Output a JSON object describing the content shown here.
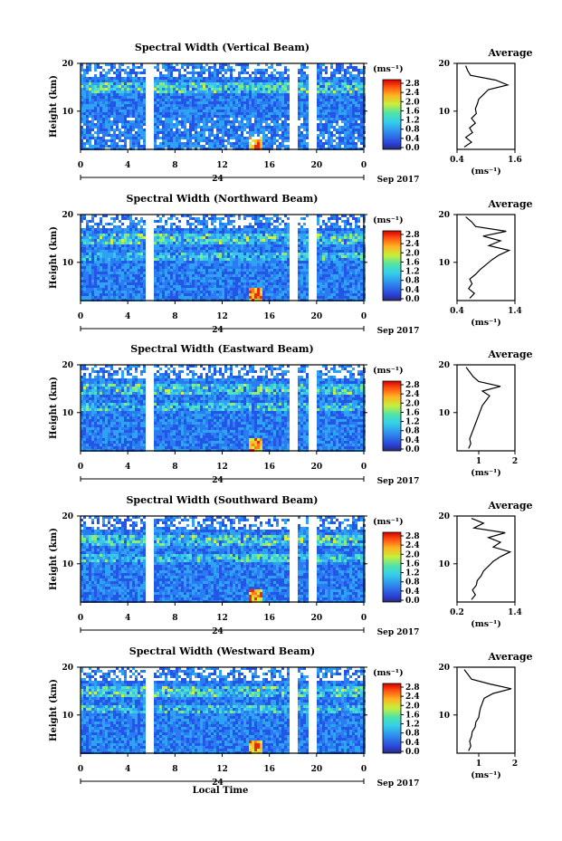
{
  "chart_data": [
    {
      "type": "heatmap",
      "title": "Spectral Width (Vertical Beam)",
      "ylabel": "Height (km)",
      "ylim": [
        2,
        20
      ],
      "yticks": [
        "20",
        "10"
      ],
      "xticks": [
        "0",
        "4",
        "8",
        "12",
        "16",
        "20",
        "0"
      ],
      "date_marker": "24",
      "date_label": "Sep 2017",
      "colorbar": {
        "unit": "(ms⁻¹)",
        "ticks": [
          "2.8",
          "2.4",
          "2.0",
          "1.6",
          "1.2",
          "0.8",
          "0.4",
          "0.0"
        ]
      },
      "average": {
        "title": "Average",
        "xlabel": "(ms⁻¹)",
        "xticks": [
          "0.4",
          "1.6"
        ],
        "xlim": [
          0.4,
          1.6
        ],
        "profile": [
          [
            0.55,
            2.5
          ],
          [
            0.7,
            3.5
          ],
          [
            0.58,
            4.5
          ],
          [
            0.72,
            5.5
          ],
          [
            0.66,
            6.5
          ],
          [
            0.78,
            7.5
          ],
          [
            0.7,
            8.5
          ],
          [
            0.8,
            9.5
          ],
          [
            0.78,
            10.5
          ],
          [
            0.82,
            11.5
          ],
          [
            0.85,
            12.5
          ],
          [
            0.95,
            13.5
          ],
          [
            1.05,
            14.5
          ],
          [
            1.45,
            15.5
          ],
          [
            1.2,
            16.5
          ],
          [
            0.68,
            17.5
          ],
          [
            0.62,
            18.5
          ],
          [
            0.58,
            19.5
          ]
        ]
      }
    },
    {
      "type": "heatmap",
      "title": "Spectral Width (Northward Beam)",
      "ylabel": "Height (km)",
      "ylim": [
        2,
        20
      ],
      "yticks": [
        "20",
        "10"
      ],
      "xticks": [
        "0",
        "4",
        "8",
        "12",
        "16",
        "20",
        "0"
      ],
      "date_marker": "24",
      "date_label": "Sep 2017",
      "colorbar": {
        "unit": "(ms⁻¹)",
        "ticks": [
          "2.8",
          "2.4",
          "2.0",
          "1.6",
          "1.2",
          "0.8",
          "0.4",
          "0.0"
        ]
      },
      "average": {
        "title": "Average",
        "xlabel": "(ms⁻¹)",
        "xticks": [
          "0.4",
          "1.4"
        ],
        "xlim": [
          0.4,
          1.4
        ],
        "profile": [
          [
            0.62,
            2.5
          ],
          [
            0.7,
            3.5
          ],
          [
            0.6,
            4.5
          ],
          [
            0.66,
            5.5
          ],
          [
            0.62,
            6.5
          ],
          [
            0.72,
            7.5
          ],
          [
            0.8,
            8.5
          ],
          [
            0.9,
            9.5
          ],
          [
            1.0,
            10.5
          ],
          [
            1.12,
            11.5
          ],
          [
            1.3,
            12.5
          ],
          [
            0.95,
            13.5
          ],
          [
            1.15,
            14.5
          ],
          [
            0.85,
            15.5
          ],
          [
            1.25,
            16.5
          ],
          [
            0.72,
            17.5
          ],
          [
            0.65,
            18.5
          ],
          [
            0.55,
            19.5
          ]
        ]
      }
    },
    {
      "type": "heatmap",
      "title": "Spectral Width (Eastward Beam)",
      "ylabel": "Height (km)",
      "ylim": [
        2,
        20
      ],
      "yticks": [
        "20",
        "10"
      ],
      "xticks": [
        "0",
        "4",
        "8",
        "12",
        "16",
        "20",
        "0"
      ],
      "date_marker": "24",
      "date_label": "Sep 2017",
      "colorbar": {
        "unit": "(ms⁻¹)",
        "ticks": [
          "2.8",
          "2.4",
          "2.0",
          "1.6",
          "1.2",
          "0.8",
          "0.4",
          "0.0"
        ]
      },
      "average": {
        "title": "Average",
        "xlabel": "(ms⁻¹)",
        "xticks": [
          "1",
          "2"
        ],
        "xlim": [
          0.4,
          2.0
        ],
        "profile": [
          [
            0.72,
            2.5
          ],
          [
            0.78,
            3.5
          ],
          [
            0.75,
            4.5
          ],
          [
            0.8,
            5.5
          ],
          [
            0.85,
            6.5
          ],
          [
            0.9,
            7.5
          ],
          [
            0.95,
            8.5
          ],
          [
            1.0,
            9.5
          ],
          [
            1.05,
            10.5
          ],
          [
            1.1,
            11.5
          ],
          [
            1.2,
            12.5
          ],
          [
            1.3,
            13.5
          ],
          [
            1.1,
            14.5
          ],
          [
            1.6,
            15.5
          ],
          [
            1.0,
            16.5
          ],
          [
            0.85,
            17.5
          ],
          [
            0.75,
            18.5
          ],
          [
            0.65,
            19.5
          ]
        ]
      }
    },
    {
      "type": "heatmap",
      "title": "Spectral Width (Southward Beam)",
      "ylabel": "Height (km)",
      "ylim": [
        2,
        20
      ],
      "yticks": [
        "20",
        "10"
      ],
      "xticks": [
        "0",
        "4",
        "8",
        "12",
        "16",
        "20",
        "0"
      ],
      "date_marker": "24",
      "date_label": "Sep 2017",
      "colorbar": {
        "unit": "(ms⁻¹)",
        "ticks": [
          "2.8",
          "2.4",
          "2.0",
          "1.6",
          "1.2",
          "0.8",
          "0.4",
          "0.0"
        ]
      },
      "average": {
        "title": "Average",
        "xlabel": "(ms⁻¹)",
        "xticks": [
          "0.2",
          "1.4"
        ],
        "xlim": [
          0.2,
          1.4
        ],
        "profile": [
          [
            0.5,
            2.5
          ],
          [
            0.58,
            3.5
          ],
          [
            0.52,
            4.5
          ],
          [
            0.6,
            5.5
          ],
          [
            0.62,
            6.5
          ],
          [
            0.7,
            7.5
          ],
          [
            0.75,
            8.5
          ],
          [
            0.85,
            9.5
          ],
          [
            0.95,
            10.5
          ],
          [
            1.1,
            11.5
          ],
          [
            1.3,
            12.5
          ],
          [
            0.95,
            13.5
          ],
          [
            1.1,
            14.5
          ],
          [
            0.85,
            15.5
          ],
          [
            1.2,
            16.5
          ],
          [
            0.55,
            17.5
          ],
          [
            0.75,
            18.5
          ],
          [
            0.5,
            19.5
          ]
        ]
      }
    },
    {
      "type": "heatmap",
      "title": "Spectral Width (Westward Beam)",
      "ylabel": "Height (km)",
      "ylim": [
        2,
        20
      ],
      "yticks": [
        "20",
        "10"
      ],
      "xticks": [
        "0",
        "4",
        "8",
        "12",
        "16",
        "20",
        "0"
      ],
      "date_marker": "24",
      "date_label": "Sep 2017",
      "xlabel": "Local Time",
      "colorbar": {
        "unit": "(ms⁻¹)",
        "ticks": [
          "2.8",
          "2.4",
          "2.0",
          "1.6",
          "1.2",
          "0.8",
          "0.4",
          "0.0"
        ]
      },
      "average": {
        "title": "Average",
        "xlabel": "(ms⁻¹)",
        "xticks": [
          "1",
          "2"
        ],
        "xlim": [
          0.4,
          2.0
        ],
        "profile": [
          [
            0.72,
            2.5
          ],
          [
            0.78,
            3.5
          ],
          [
            0.75,
            4.5
          ],
          [
            0.8,
            5.5
          ],
          [
            0.82,
            6.5
          ],
          [
            0.9,
            7.5
          ],
          [
            0.92,
            8.5
          ],
          [
            1.0,
            9.5
          ],
          [
            1.02,
            10.5
          ],
          [
            1.05,
            11.5
          ],
          [
            1.1,
            12.5
          ],
          [
            1.15,
            13.5
          ],
          [
            1.4,
            14.5
          ],
          [
            1.9,
            15.5
          ],
          [
            1.3,
            16.5
          ],
          [
            0.8,
            17.5
          ],
          [
            0.7,
            18.5
          ],
          [
            0.6,
            19.5
          ]
        ]
      }
    }
  ]
}
